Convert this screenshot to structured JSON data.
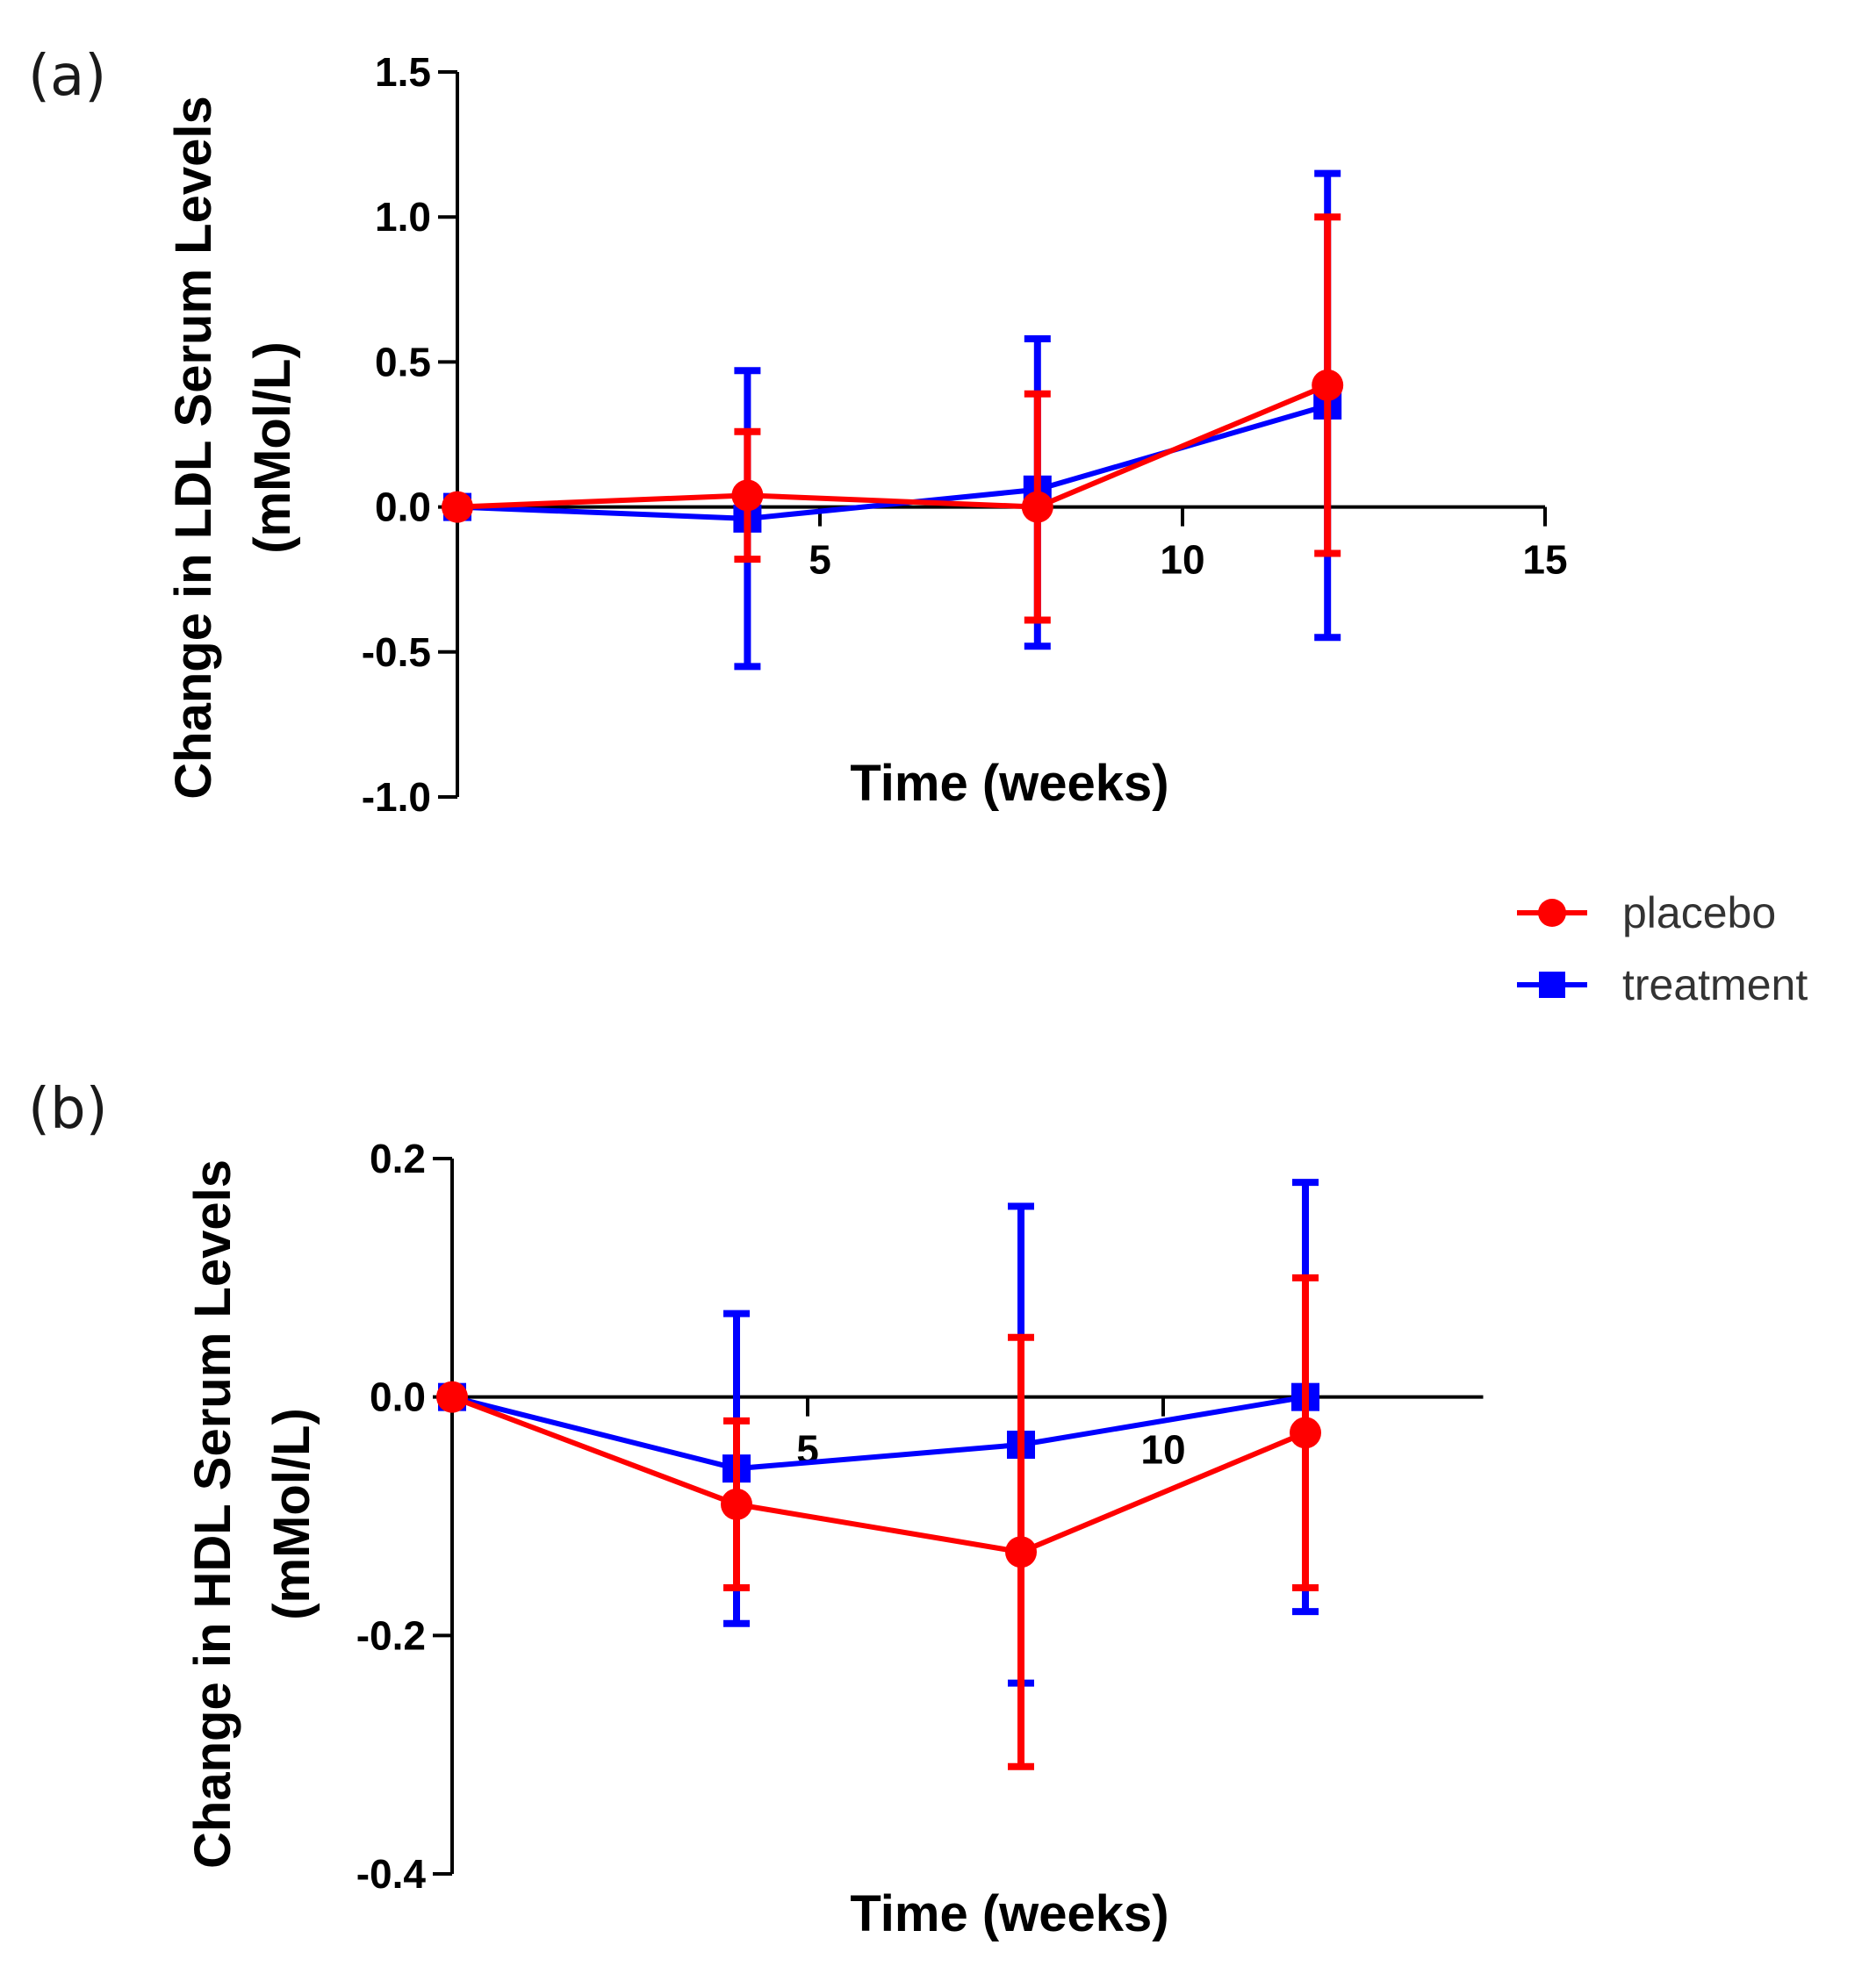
{
  "legend": {
    "items": [
      {
        "label": "placebo",
        "color": "#ff0000",
        "marker": "circle"
      },
      {
        "label": "treatment",
        "color": "#0000ff",
        "marker": "square"
      }
    ]
  },
  "chart_data": [
    {
      "panel_label": "(a)",
      "type": "line",
      "title": "",
      "xlabel": "Time (weeks)",
      "ylabel_line1": "Change in LDL Serum Levels",
      "ylabel_line2": "(mMol/L)",
      "xlim": [
        0,
        15
      ],
      "ylim": [
        -1.0,
        1.5
      ],
      "xticks": [
        5,
        10,
        15
      ],
      "xtick_labels": [
        "5",
        "10",
        "15"
      ],
      "yticks": [
        1.5,
        1.0,
        0.5,
        0.0,
        -0.5,
        -1.0
      ],
      "ytick_labels": [
        "1.5",
        "1.0",
        "0.5",
        "0.0",
        "-0.5",
        "-1.0"
      ],
      "x": [
        0,
        4,
        8,
        12
      ],
      "series": [
        {
          "name": "treatment",
          "color": "#0000ff",
          "marker": "square",
          "values": [
            0.0,
            -0.04,
            0.06,
            0.35
          ],
          "err_low": [
            -0.01,
            -0.55,
            -0.48,
            -0.45
          ],
          "err_high": [
            0.01,
            0.47,
            0.58,
            1.15
          ]
        },
        {
          "name": "placebo",
          "color": "#ff0000",
          "marker": "circle",
          "values": [
            0.0,
            0.04,
            0.0,
            0.42
          ],
          "err_low": [
            -0.01,
            -0.18,
            -0.39,
            -0.16
          ],
          "err_high": [
            0.01,
            0.26,
            0.39,
            1.0
          ]
        }
      ]
    },
    {
      "panel_label": "(b)",
      "type": "line",
      "title": "",
      "xlabel": "Time (weeks)",
      "ylabel_line1": "Change in HDL Serum Levels",
      "ylabel_line2": "(mMol/L)",
      "xlim": [
        0,
        14.5
      ],
      "ylim": [
        -0.4,
        0.2
      ],
      "xticks": [
        5,
        10
      ],
      "xtick_labels": [
        "5",
        "10"
      ],
      "yticks": [
        0.2,
        0.0,
        -0.2,
        -0.4
      ],
      "ytick_labels": [
        "0.2",
        "0.0",
        "-0.2",
        "-0.4"
      ],
      "x": [
        0,
        4,
        8,
        12
      ],
      "series": [
        {
          "name": "treatment",
          "color": "#0000ff",
          "marker": "square",
          "values": [
            0.0,
            -0.06,
            -0.04,
            0.0
          ],
          "err_low": [
            -0.003,
            -0.19,
            -0.24,
            -0.18
          ],
          "err_high": [
            0.003,
            0.07,
            0.16,
            0.18
          ]
        },
        {
          "name": "placebo",
          "color": "#ff0000",
          "marker": "circle",
          "values": [
            0.0,
            -0.09,
            -0.13,
            -0.03
          ],
          "err_low": [
            -0.003,
            -0.16,
            -0.31,
            -0.16
          ],
          "err_high": [
            0.003,
            -0.02,
            0.05,
            0.1
          ]
        }
      ]
    }
  ]
}
